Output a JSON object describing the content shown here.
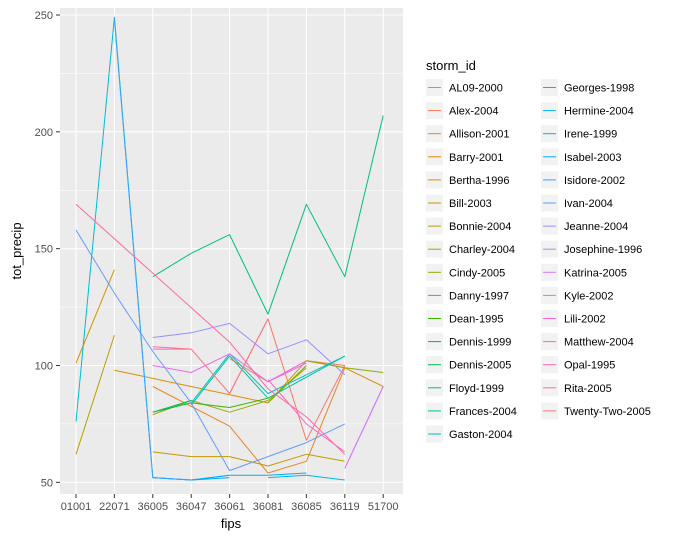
{
  "chart_data": {
    "type": "line",
    "xlabel": "fips",
    "ylabel": "tot_precip",
    "categories": [
      "01001",
      "22071",
      "36005",
      "36047",
      "36061",
      "36081",
      "36085",
      "36119",
      "51700"
    ],
    "y_ticks": [
      50,
      100,
      150,
      200,
      250
    ],
    "ylim": [
      45,
      253
    ],
    "grid": true,
    "legend": {
      "title": "storm_id",
      "placement": "right",
      "columns": 2
    },
    "series": [
      {
        "name": "AL09-2000",
        "color": "#F8766D",
        "points": [
          {
            "x": "36061",
            "y": 88
          },
          {
            "x": "36081",
            "y": 120
          },
          {
            "x": "36085",
            "y": 68
          },
          {
            "x": "36119",
            "y": 100
          }
        ]
      },
      {
        "name": "Alex-2004",
        "color": "#F27D53",
        "points": [
          {
            "x": "36061",
            "y": 103
          },
          {
            "x": "36081",
            "y": 93
          },
          {
            "x": "36085",
            "y": 102
          },
          {
            "x": "36119",
            "y": 100
          }
        ]
      },
      {
        "name": "Allison-2001",
        "color": "#E88526",
        "points": [
          {
            "x": "36005",
            "y": 91
          },
          {
            "x": "36061",
            "y": 74
          },
          {
            "x": "36081",
            "y": 54
          },
          {
            "x": "36085",
            "y": 59
          },
          {
            "x": "36119",
            "y": 99
          }
        ]
      },
      {
        "name": "Barry-2001",
        "color": "#DE8C00",
        "points": [
          {
            "x": "22071",
            "y": 98
          },
          {
            "x": "36081",
            "y": 84
          },
          {
            "x": "36085",
            "y": 102
          },
          {
            "x": "36119",
            "y": 99
          },
          {
            "x": "51700",
            "y": 91
          }
        ]
      },
      {
        "name": "Bertha-1996",
        "color": "#D39200",
        "points": [
          {
            "x": "01001",
            "y": 101
          },
          {
            "x": "22071",
            "y": 141
          }
        ]
      },
      {
        "name": "Bill-2003",
        "color": "#C49A00",
        "points": [
          {
            "x": "36005",
            "y": 63
          },
          {
            "x": "36047",
            "y": 61
          },
          {
            "x": "36061",
            "y": 61
          },
          {
            "x": "36081",
            "y": 57
          },
          {
            "x": "36085",
            "y": 62
          },
          {
            "x": "36119",
            "y": 59
          }
        ]
      },
      {
        "name": "Bonnie-2004",
        "color": "#B79F00",
        "points": [
          {
            "x": "01001",
            "y": 62
          },
          {
            "x": "22071",
            "y": 113
          }
        ]
      },
      {
        "name": "Charley-2004",
        "color": "#A3A500",
        "points": [
          {
            "x": "36005",
            "y": 79
          },
          {
            "x": "36047",
            "y": 85
          },
          {
            "x": "36061",
            "y": 80
          },
          {
            "x": "36081",
            "y": 85
          },
          {
            "x": "36085",
            "y": 99
          }
        ]
      },
      {
        "name": "Cindy-2005",
        "color": "#8EAB00",
        "points": [
          {
            "x": "36085",
            "y": 102
          },
          {
            "x": "36119",
            "y": 99
          },
          {
            "x": "51700",
            "y": 97
          }
        ]
      },
      {
        "name": "Danny-1997",
        "color": "#6BB100",
        "points": [
          {
            "x": "36081",
            "y": 84
          },
          {
            "x": "36085",
            "y": 100
          }
        ]
      },
      {
        "name": "Dean-1995",
        "color": "#39B600",
        "points": [
          {
            "x": "36047",
            "y": 84
          },
          {
            "x": "36061",
            "y": 82
          },
          {
            "x": "36081",
            "y": 86
          }
        ]
      },
      {
        "name": "Dennis-1999",
        "color": "#00BA38",
        "points": [
          {
            "x": "36005",
            "y": 80
          },
          {
            "x": "36047",
            "y": 84
          }
        ]
      },
      {
        "name": "Dennis-2005",
        "color": "#00BC59",
        "points": [
          {
            "x": "36005",
            "y": 80
          },
          {
            "x": "36047",
            "y": 85
          }
        ]
      },
      {
        "name": "Floyd-1999",
        "color": "#00BF7D",
        "points": [
          {
            "x": "36005",
            "y": 138
          },
          {
            "x": "36047",
            "y": 148
          },
          {
            "x": "36061",
            "y": 156
          },
          {
            "x": "36081",
            "y": 122
          },
          {
            "x": "36085",
            "y": 169
          },
          {
            "x": "36119",
            "y": 138
          },
          {
            "x": "51700",
            "y": 207
          }
        ]
      },
      {
        "name": "Frances-2004",
        "color": "#00C0A0",
        "points": [
          {
            "x": "36047",
            "y": 83
          },
          {
            "x": "36061",
            "y": 104
          },
          {
            "x": "36081",
            "y": 86
          },
          {
            "x": "36085",
            "y": 95
          },
          {
            "x": "36119",
            "y": 104
          }
        ]
      },
      {
        "name": "Gaston-2004",
        "color": "#00C0BB",
        "points": [
          {
            "x": "36047",
            "y": 84
          },
          {
            "x": "36061",
            "y": 105
          },
          {
            "x": "36081",
            "y": 88
          },
          {
            "x": "36085",
            "y": 96
          },
          {
            "x": "36119",
            "y": 104
          }
        ]
      },
      {
        "name": "Georges-1998",
        "color": "#00BDD4",
        "points": [
          {
            "x": "01001",
            "y": 76
          },
          {
            "x": "22071",
            "y": 249
          },
          {
            "x": "36005",
            "y": 52
          },
          {
            "x": "36047",
            "y": 51
          },
          {
            "x": "36061",
            "y": 53
          }
        ]
      },
      {
        "name": "Hermine-2004",
        "color": "#00B8E7",
        "points": [
          {
            "x": "36081",
            "y": 52
          },
          {
            "x": "36085",
            "y": 53
          },
          {
            "x": "36119",
            "y": 51
          }
        ]
      },
      {
        "name": "Irene-1999",
        "color": "#00B0F6",
        "points": [
          {
            "x": "36005",
            "y": 52
          },
          {
            "x": "36047",
            "y": 51
          },
          {
            "x": "36061",
            "y": 53
          },
          {
            "x": "36081",
            "y": 53
          },
          {
            "x": "36085",
            "y": 54
          }
        ]
      },
      {
        "name": "Isabel-2003",
        "color": "#00A9FF",
        "points": [
          {
            "x": "36047",
            "y": 51
          },
          {
            "x": "36061",
            "y": 52
          }
        ]
      },
      {
        "name": "Isidore-2002",
        "color": "#35A2FF",
        "points": [
          {
            "x": "22071",
            "y": 248
          },
          {
            "x": "36005",
            "y": 52
          },
          {
            "x": "36047",
            "y": 51
          }
        ]
      },
      {
        "name": "Ivan-2004",
        "color": "#619CFF",
        "points": [
          {
            "x": "01001",
            "y": 158
          },
          {
            "x": "22071",
            "y": 131
          },
          {
            "x": "36005",
            "y": 106
          },
          {
            "x": "36047",
            "y": 84
          },
          {
            "x": "36061",
            "y": 55
          },
          {
            "x": "36081",
            "y": 61
          },
          {
            "x": "36085",
            "y": 67
          },
          {
            "x": "36119",
            "y": 75
          }
        ]
      },
      {
        "name": "Jeanne-2004",
        "color": "#9590FF",
        "points": [
          {
            "x": "36005",
            "y": 112
          },
          {
            "x": "36047",
            "y": 114
          },
          {
            "x": "36061",
            "y": 118
          },
          {
            "x": "36081",
            "y": 105
          },
          {
            "x": "36085",
            "y": 111
          },
          {
            "x": "36119",
            "y": 96
          }
        ]
      },
      {
        "name": "Josephine-1996",
        "color": "#B983FF",
        "points": [
          {
            "x": "36119",
            "y": 56
          },
          {
            "x": "51700",
            "y": 91
          }
        ]
      },
      {
        "name": "Katrina-2005",
        "color": "#D376FF",
        "points": [
          {
            "x": "36119",
            "y": 56
          },
          {
            "x": "51700",
            "y": 91
          }
        ]
      },
      {
        "name": "Kyle-2002",
        "color": "#E76BF3",
        "points": [
          {
            "x": "36005",
            "y": 100
          },
          {
            "x": "36047",
            "y": 97
          },
          {
            "x": "36061",
            "y": 105
          },
          {
            "x": "36081",
            "y": 93
          },
          {
            "x": "36085",
            "y": 102
          }
        ]
      },
      {
        "name": "Lili-2002",
        "color": "#F564E3",
        "points": [
          {
            "x": "36081",
            "y": 93
          },
          {
            "x": "36085",
            "y": 101
          }
        ]
      },
      {
        "name": "Matthew-2004",
        "color": "#FD61D1",
        "points": [
          {
            "x": "36005",
            "y": 107
          },
          {
            "x": "36047",
            "y": 107
          }
        ]
      },
      {
        "name": "Opal-1995",
        "color": "#FF62BC",
        "points": [
          {
            "x": "36081",
            "y": 94
          },
          {
            "x": "36085",
            "y": 75
          },
          {
            "x": "36119",
            "y": 63
          }
        ]
      },
      {
        "name": "Rita-2005",
        "color": "#FF67A4",
        "points": [
          {
            "x": "01001",
            "y": 169
          },
          {
            "x": "36061",
            "y": 110
          },
          {
            "x": "36081",
            "y": 90
          },
          {
            "x": "36085",
            "y": 78
          },
          {
            "x": "36119",
            "y": 62
          }
        ]
      },
      {
        "name": "Twenty-Two-2005",
        "color": "#FC717F",
        "points": [
          {
            "x": "36005",
            "y": 108
          },
          {
            "x": "36047",
            "y": 107
          },
          {
            "x": "36061",
            "y": 88
          },
          {
            "x": "36081",
            "y": 120
          }
        ]
      }
    ]
  }
}
